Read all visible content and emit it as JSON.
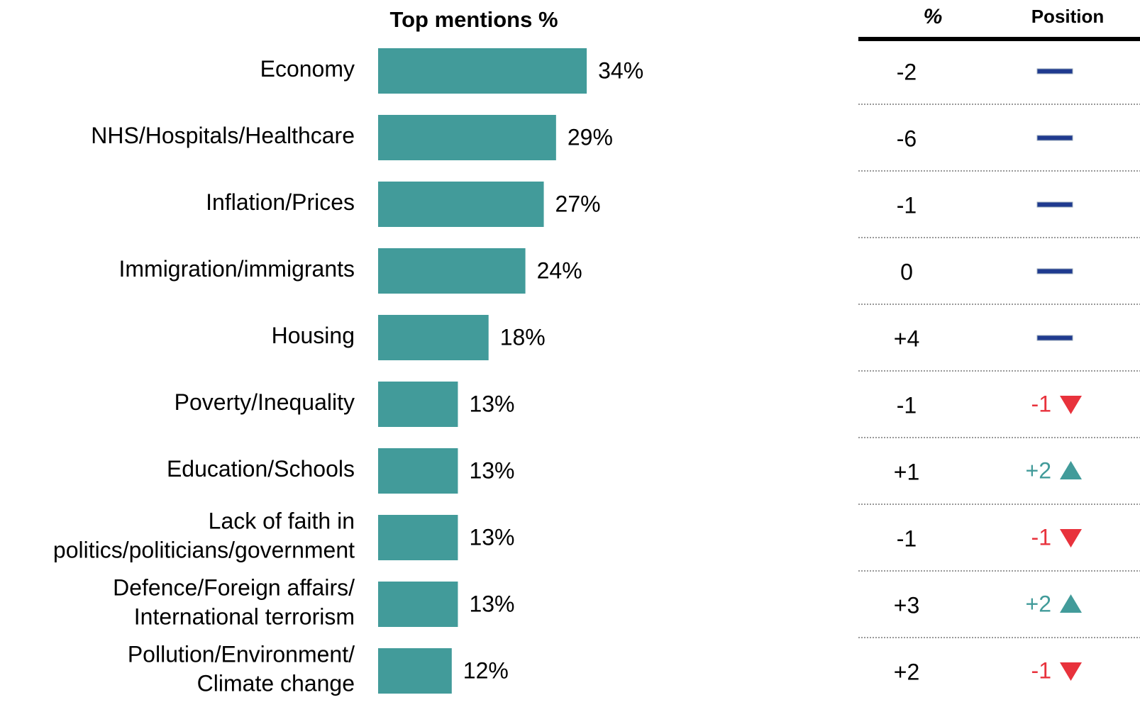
{
  "chart_data": {
    "type": "bar",
    "orientation": "horizontal",
    "title": "Top mentions %",
    "categories": [
      "Economy",
      "NHS/Hospitals/Healthcare",
      "Inflation/Prices",
      "Immigration/immigrants",
      "Housing",
      "Poverty/Inequality",
      "Education/Schools",
      "Lack of faith in\npolitics/politicians/government",
      "Defence/Foreign affairs/\nInternational terrorism",
      "Pollution/Environment/\nClimate change"
    ],
    "values": [
      34,
      29,
      27,
      24,
      18,
      13,
      13,
      13,
      13,
      12
    ],
    "value_labels": [
      "34%",
      "29%",
      "27%",
      "24%",
      "18%",
      "13%",
      "13%",
      "13%",
      "13%",
      "12%"
    ],
    "color": "#429b9a",
    "xlim": [
      0,
      100
    ]
  },
  "table": {
    "columns": [
      "%",
      "Position"
    ],
    "rows": [
      {
        "change": "-2",
        "position": null,
        "direction": "same"
      },
      {
        "change": "-6",
        "position": null,
        "direction": "same"
      },
      {
        "change": "-1",
        "position": null,
        "direction": "same"
      },
      {
        "change": "0",
        "position": null,
        "direction": "same"
      },
      {
        "change": "+4",
        "position": null,
        "direction": "same"
      },
      {
        "change": "-1",
        "position": "-1",
        "direction": "down"
      },
      {
        "change": "+1",
        "position": "+2",
        "direction": "up"
      },
      {
        "change": "-1",
        "position": "-1",
        "direction": "down"
      },
      {
        "change": "+3",
        "position": "+2",
        "direction": "up"
      },
      {
        "change": "+2",
        "position": "-1",
        "direction": "down"
      }
    ],
    "colors": {
      "up": "#429b9a",
      "down": "#e8323c",
      "same": "#1f3a8f"
    }
  }
}
